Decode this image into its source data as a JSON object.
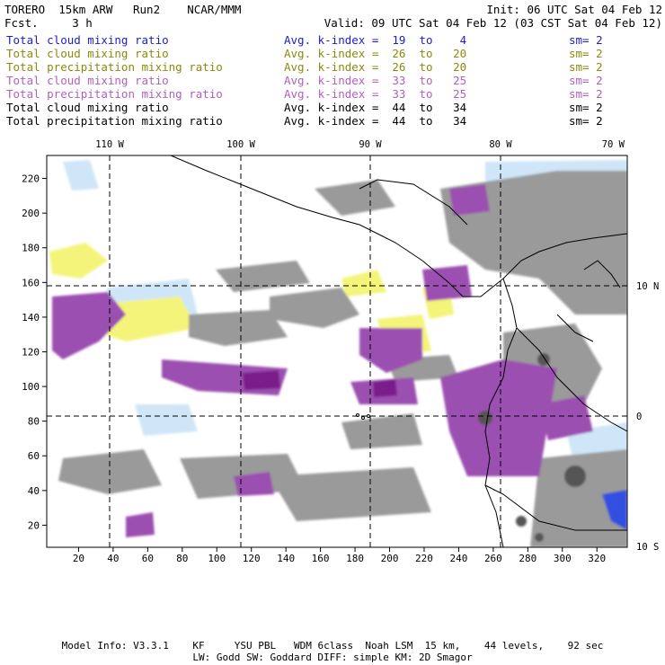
{
  "header": {
    "left_line1": "TORERO  15km ARW   Run2    NCAR/MMM",
    "left_line2": "Fcst.     3 h",
    "right_line1": "Init: 06 UTC Sat 04 Feb 12",
    "right_line2": "Valid: 09 UTC Sat 04 Feb 12 (03 CST Sat 04 Feb 12)"
  },
  "legend": [
    {
      "field": "Total cloud mixing ratio",
      "index": "Avg. k-index =  19  to    4",
      "sm": "sm= 2",
      "color": "#1c1ccc"
    },
    {
      "field": "Total cloud mixing ratio",
      "index": "Avg. k-index =  26  to   20",
      "sm": "sm= 2",
      "color": "#8a8a10"
    },
    {
      "field": "Total precipitation mixing ratio",
      "index": "Avg. k-index =  26  to   20",
      "sm": "sm= 2",
      "color": "#8a8a10"
    },
    {
      "field": "Total cloud mixing ratio",
      "index": "Avg. k-index =  33  to   25",
      "sm": "sm= 2",
      "color": "#b060c0"
    },
    {
      "field": "Total precipitation mixing ratio",
      "index": "Avg. k-index =  33  to   25",
      "sm": "sm= 2",
      "color": "#b060c0"
    },
    {
      "field": "Total cloud mixing ratio",
      "index": "Avg. k-index =  44  to   34",
      "sm": "sm= 2",
      "color": "#000000"
    },
    {
      "field": "Total precipitation mixing ratio",
      "index": "Avg. k-index =  44  to   34",
      "sm": "sm= 2",
      "color": "#000000"
    }
  ],
  "map": {
    "x_ticks": [
      "20",
      "40",
      "60",
      "80",
      "100",
      "120",
      "140",
      "160",
      "180",
      "200",
      "220",
      "240",
      "260",
      "280",
      "300",
      "320"
    ],
    "y_ticks": [
      "20",
      "40",
      "60",
      "80",
      "100",
      "120",
      "140",
      "160",
      "180",
      "200",
      "220"
    ],
    "lon_labels": [
      "110 W",
      "100 W",
      "90 W",
      "80 W",
      "70 W"
    ],
    "lat_labels": [
      "10 N",
      "0",
      "10 S"
    ],
    "colors": {
      "gray": "#9a9a9a",
      "dark_gray": "#555555",
      "purple": "#9b4fb0",
      "dark_purple": "#7a1f8a",
      "yellow": "#f4f47a",
      "light_blue": "#cfe6f8",
      "blue": "#3050e0"
    }
  },
  "footer": {
    "line1": "Model Info: V3.3.1    KF     YSU PBL   WDM 6class  Noah LSM  15 km,    44 levels,    92 sec",
    "line2": "LW: Godd SW: Goddard DIFF: simple KM: 2D Smagor"
  }
}
